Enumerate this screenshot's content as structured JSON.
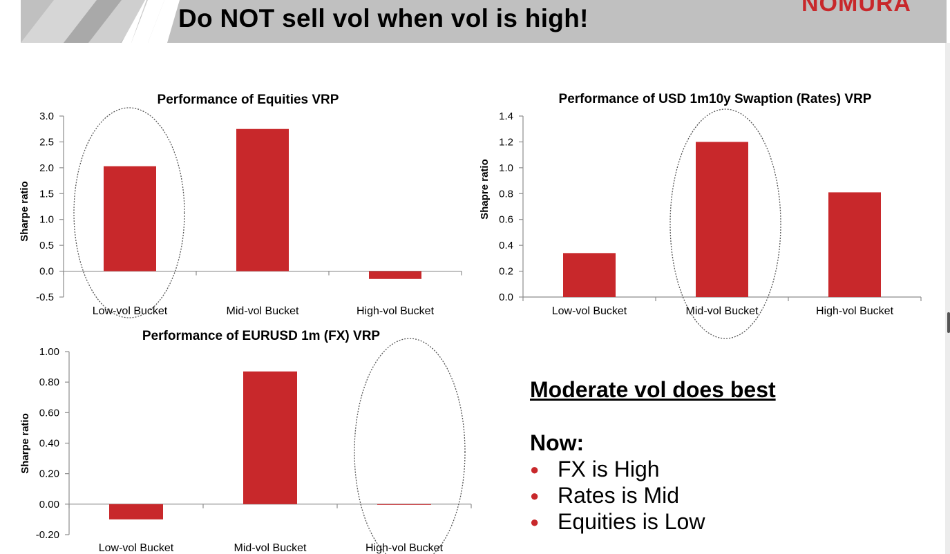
{
  "slide": {
    "title": "Do NOT sell vol when vol is high!",
    "logo": "NOMURA"
  },
  "colors": {
    "bar": "#c8282b",
    "header_bg": "#c0c0c0",
    "header_stripe_light": "#d6d6d6",
    "header_stripe_dark": "#a9a9a9",
    "axis": "#8c8c8c",
    "highlight_ellipse": "#555555"
  },
  "chart_data": [
    {
      "id": "equities",
      "type": "bar",
      "title": "Performance of Equities VRP",
      "ylabel": "Sharpe ratio",
      "xlabel": "",
      "categories": [
        "Low-vol Bucket",
        "Mid-vol Bucket",
        "High-vol Bucket"
      ],
      "values": [
        2.03,
        2.75,
        -0.15
      ],
      "ylim": [
        -0.5,
        3.0
      ],
      "yticks": [
        "-0.5",
        "0.0",
        "0.5",
        "1.0",
        "1.5",
        "2.0",
        "2.5",
        "3.0"
      ],
      "highlighted": "Low-vol Bucket",
      "grid": false
    },
    {
      "id": "rates",
      "type": "bar",
      "title": "Performance of USD 1m10y Swaption (Rates) VRP",
      "ylabel": "Shapre ratio",
      "xlabel": "",
      "categories": [
        "Low-vol Bucket",
        "Mid-vol Bucket",
        "High-vol Bucket"
      ],
      "values": [
        0.34,
        1.2,
        0.81
      ],
      "ylim": [
        0.0,
        1.4
      ],
      "yticks": [
        "0.0",
        "0.2",
        "0.4",
        "0.6",
        "0.8",
        "1.0",
        "1.2",
        "1.4"
      ],
      "highlighted": "Mid-vol Bucket",
      "grid": false
    },
    {
      "id": "fx",
      "type": "bar",
      "title": "Performance of EURUSD 1m (FX) VRP",
      "ylabel": "Sharpe ratio",
      "xlabel": "",
      "categories": [
        "Low-vol Bucket",
        "Mid-vol Bucket",
        "High-vol Bucket"
      ],
      "values": [
        -0.1,
        0.87,
        0.0
      ],
      "ylim": [
        -0.2,
        1.0
      ],
      "yticks": [
        "-0.20",
        "0.00",
        "0.20",
        "0.40",
        "0.60",
        "0.80",
        "1.00"
      ],
      "highlighted": "High-vol Bucket",
      "grid": false
    }
  ],
  "takeaway": {
    "title": "Moderate vol does best",
    "now_label": "Now:",
    "bullets": [
      "FX is High",
      "Rates is Mid",
      "Equities is Low"
    ]
  }
}
